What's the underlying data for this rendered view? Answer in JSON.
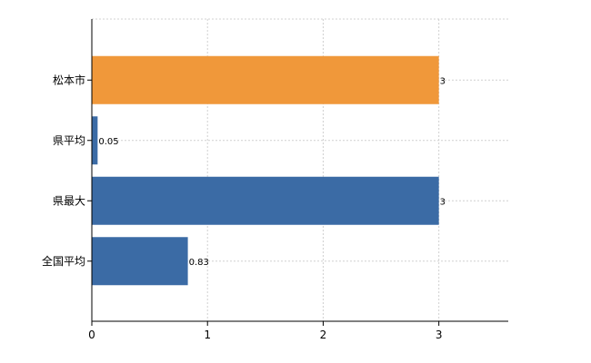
{
  "chart_data": {
    "type": "bar",
    "orientation": "horizontal",
    "categories": [
      "松本市",
      "県平均",
      "県最大",
      "全国平均"
    ],
    "values": [
      3,
      0.05,
      3,
      0.83
    ],
    "value_labels": [
      "3",
      "0.05",
      "3",
      "0.83"
    ],
    "bar_colors": [
      "#f0983a",
      "#3b6ba5",
      "#3b6ba5",
      "#3b6ba5"
    ],
    "xlim": [
      0,
      3.6
    ],
    "xticks": [
      0,
      1,
      2,
      3
    ],
    "xtick_labels": [
      "0",
      "1",
      "2",
      "3"
    ],
    "grid": true,
    "legend": "none"
  }
}
